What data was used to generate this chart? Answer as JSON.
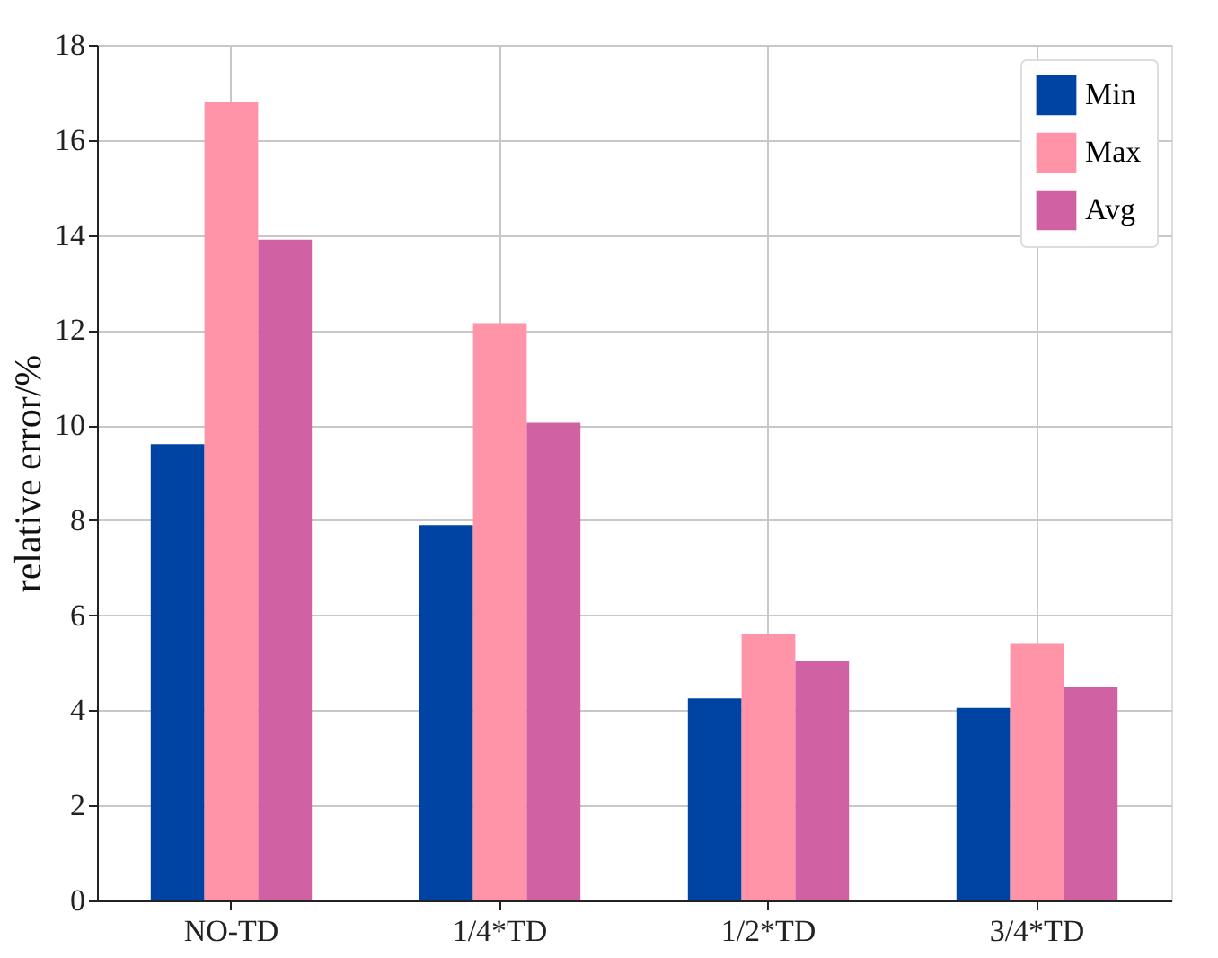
{
  "chart_data": {
    "type": "bar",
    "ylabel": "relative error/%",
    "categories": [
      "NO-TD",
      "1/4*TD",
      "1/2*TD",
      "3/4*TD"
    ],
    "series": [
      {
        "name": "Min",
        "color": "#0044a3",
        "values": [
          9.6,
          7.9,
          4.25,
          4.05
        ]
      },
      {
        "name": "Max",
        "color": "#ff94a8",
        "values": [
          16.8,
          12.15,
          5.6,
          5.4
        ]
      },
      {
        "name": "Avg",
        "color": "#d062a4",
        "values": [
          13.9,
          10.05,
          5.05,
          4.5
        ]
      }
    ],
    "ylim": [
      0,
      18
    ],
    "yticks": [
      0,
      2,
      4,
      6,
      8,
      10,
      12,
      14,
      16,
      18
    ],
    "grid": true,
    "legend": "top right"
  }
}
